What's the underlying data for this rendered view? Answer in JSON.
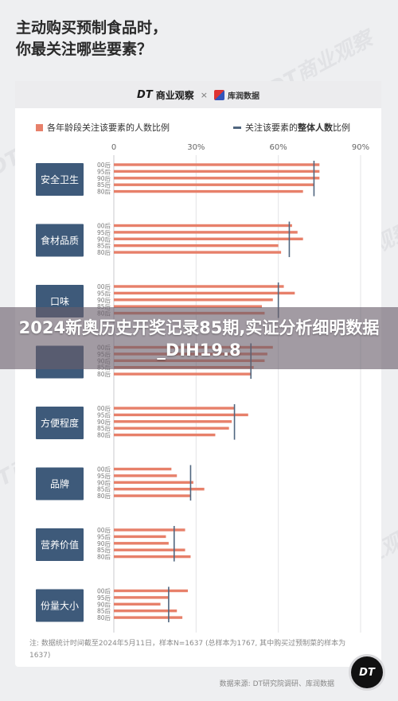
{
  "page": {
    "title_line1": "主动购买预制食品时，",
    "title_line2": "你最关注哪些要素？",
    "overlay_title": "2024新奥历史开奖记录85期,实证分析细明数据_DIH19.8",
    "note": "注: 数据统计时间截至2024年5月11日，样本N=1637 (总样本为1767, 其中购买过预制菜的样本为1637)",
    "source": "数据来源: DT研究院调研、库润数据",
    "brand_dt_mark": "DT",
    "brand_dt_name": "商业观察",
    "brand_sep": "×",
    "brand_partner": "库润数据",
    "badge": "DT",
    "watermark": "DT商业观察",
    "colors": {
      "bar": "#e7806a",
      "line": "#50667f",
      "category_box": "#3e5a7a"
    }
  },
  "chart_data": {
    "type": "bar",
    "orientation": "horizontal",
    "legend": {
      "bars": "各年龄段关注该要素的人数比例",
      "line_prefix": "关注该要素的",
      "line_bold": "整体人数",
      "line_suffix": "比例"
    },
    "x_ticks": [
      "0",
      "30%",
      "60%",
      "90%"
    ],
    "xlim": [
      0,
      90
    ],
    "age_groups": [
      "00后",
      "95后",
      "90后",
      "85后",
      "80后"
    ],
    "categories": [
      {
        "name": "安全卫生",
        "values": [
          75,
          75,
          75,
          73,
          69
        ],
        "overall": 73
      },
      {
        "name": "食材品质",
        "values": [
          65,
          67,
          69,
          60,
          61
        ],
        "overall": 64
      },
      {
        "name": "口味",
        "values": [
          62,
          66,
          58,
          54,
          55
        ],
        "overall": 60
      },
      {
        "name": "",
        "values": [
          58,
          56,
          55,
          51,
          50
        ],
        "overall": 50
      },
      {
        "name": "方便程度",
        "values": [
          44,
          49,
          43,
          42,
          37
        ],
        "overall": 44
      },
      {
        "name": "品牌",
        "values": [
          21,
          23,
          29,
          33,
          28
        ],
        "overall": 28
      },
      {
        "name": "营养价值",
        "values": [
          26,
          19,
          20,
          26,
          28
        ],
        "overall": 22
      },
      {
        "name": "份量大小",
        "values": [
          27,
          20,
          17,
          23,
          25
        ],
        "overall": 20
      }
    ]
  }
}
